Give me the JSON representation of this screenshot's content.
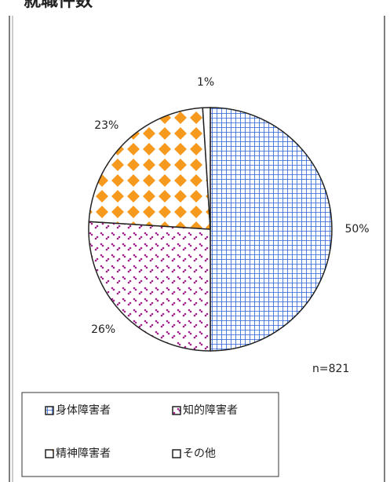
{
  "chart_data": {
    "type": "pie",
    "title": "就職件数",
    "categories": [
      "身体障害者",
      "知的障害者",
      "精神障害者",
      "その他"
    ],
    "values": [
      50,
      26,
      23,
      1
    ],
    "value_labels": [
      "50%",
      "26%",
      "23%",
      "1%"
    ],
    "colors": [
      "#2a5fd6",
      "#a0208a",
      "#f59a1e",
      "#ffffff"
    ],
    "annotation": "n=821"
  }
}
